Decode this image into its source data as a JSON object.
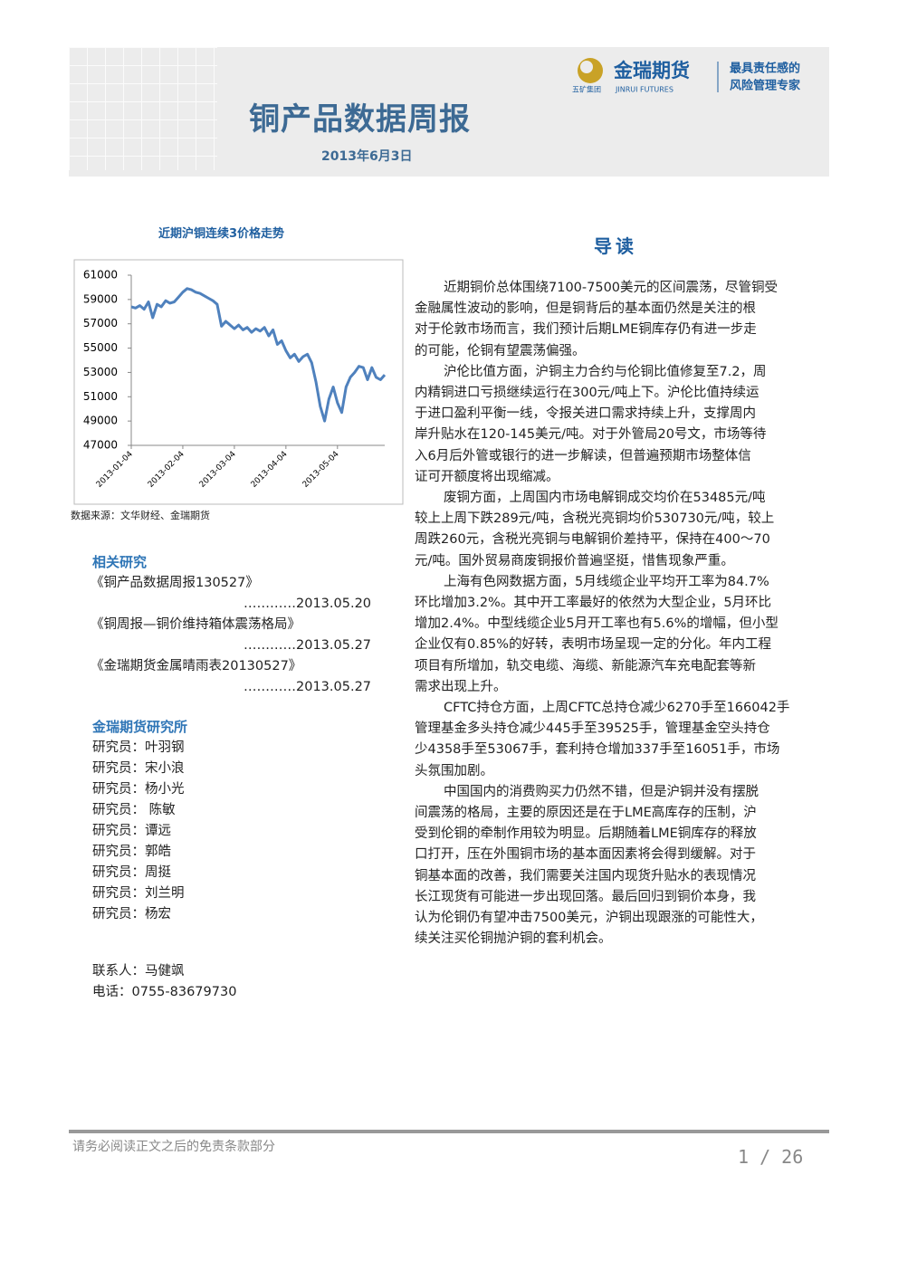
{
  "header": {
    "title": "铜产品数据周报",
    "date": "2013年6月3日",
    "logo_name": "金瑞期货",
    "logo_group": "五矿集团",
    "logo_en": "JINRUI FUTURES",
    "slogan": [
      "最具责任感的",
      "风险管理专家"
    ]
  },
  "chart_data": {
    "type": "line",
    "title": "近期沪铜连续3价格走势",
    "color": "#4f81bd",
    "categories": [
      "2013-01-04",
      null,
      null,
      null,
      null,
      null,
      null,
      null,
      null,
      null,
      null,
      null,
      "2013-02-04",
      null,
      null,
      null,
      null,
      null,
      null,
      null,
      null,
      null,
      null,
      null,
      "2013-03-04",
      null,
      null,
      null,
      null,
      null,
      null,
      null,
      null,
      null,
      null,
      null,
      "2013-04-04",
      null,
      null,
      null,
      null,
      null,
      null,
      null,
      null,
      null,
      null,
      null,
      "2013-05-04",
      null,
      null,
      null,
      null,
      null,
      null,
      null,
      null,
      null,
      null,
      null
    ],
    "values": [
      58400,
      58300,
      58500,
      58200,
      58800,
      57500,
      58600,
      58400,
      58900,
      58700,
      58800,
      59200,
      59600,
      59900,
      59800,
      59600,
      59500,
      59300,
      59100,
      58900,
      58600,
      56800,
      57200,
      56900,
      56600,
      56900,
      56500,
      56700,
      56300,
      56600,
      56400,
      56700,
      56000,
      56500,
      55300,
      55600,
      54800,
      54200,
      54500,
      53900,
      54300,
      54500,
      53800,
      52200,
      50200,
      49000,
      50800,
      51800,
      50500,
      49700,
      51800,
      52600,
      53000,
      53500,
      53400,
      52400,
      53400,
      52600,
      52400,
      52800
    ],
    "ylim": [
      47000,
      61000
    ],
    "yticks": [
      47000,
      49000,
      51000,
      53000,
      55000,
      57000,
      59000,
      61000
    ],
    "grid": false
  },
  "source": "数据来源：文华财经、金瑞期货",
  "related": {
    "title": "相关研究",
    "items": [
      {
        "title": "《铜产品数据周报130527》",
        "date": "…………2013.05.20"
      },
      {
        "title": "《铜周报—铜价维持箱体震荡格局》",
        "date": "…………2013.05.27"
      },
      {
        "title": "《金瑞期货金属晴雨表20130527》",
        "date": "…………2013.05.27"
      }
    ]
  },
  "institute": {
    "title": "金瑞期货研究所",
    "members": [
      "研究员：叶羽钢",
      "研究员：宋小浪",
      "研究员：杨小光",
      "研究员： 陈敏",
      "研究员：谭远",
      "研究员：郭皓",
      "研究员：周挺",
      "研究员：刘兰明",
      "研究员：杨宏"
    ]
  },
  "contact": {
    "person": "联系人：马健飒",
    "phone": "电话：0755-83679730"
  },
  "intro": {
    "title": "导读",
    "paragraphs": [
      [
        "近期铜价总体围绕7100-7500美元的区间震荡，尽管铜受",
        "金融属性波动的影响，但是铜背后的基本面仍然是关注的根",
        "对于伦敦市场而言，我们预计后期LME铜库存仍有进一步走",
        "的可能，伦铜有望震荡偏强。"
      ],
      [
        "沪伦比值方面，沪铜主力合约与伦铜比值修复至7.2，周",
        "内精铜进口亏损继续运行在300元/吨上下。沪伦比值持续运",
        "于进口盈利平衡一线，令报关进口需求持续上升，支撑周内",
        "岸升贴水在120-145美元/吨。对于外管局20号文，市场等待",
        "入6月后外管或银行的进一步解读，但普遍预期市场整体信",
        "证可开额度将出现缩减。"
      ],
      [
        "废铜方面，上周国内市场电解铜成交均价在53485元/吨",
        "较上上周下跌289元/吨，含税光亮铜均价530730元/吨，较上",
        "周跌260元，含税光亮铜与电解铜价差持平，保持在400～70",
        "元/吨。国外贸易商废铜报价普遍坚挺，惜售现象严重。"
      ],
      [
        "上海有色网数据方面，5月线缆企业平均开工率为84.7%",
        "环比增加3.2%。其中开工率最好的依然为大型企业，5月环比",
        "增加2.4%。中型线缆企业5月开工率也有5.6%的增幅，但小型",
        "企业仅有0.85%的好转，表明市场呈现一定的分化。年内工程",
        "项目有所增加，轨交电缆、海缆、新能源汽车充电配套等新",
        "需求出现上升。"
      ],
      [
        "CFTC持仓方面，上周CFTC总持仓减少6270手至166042手",
        "管理基金多头持仓减少445手至39525手，管理基金空头持仓",
        "少4358手至53067手，套利持仓增加337手至16051手，市场",
        "头氛围加剧。"
      ],
      [
        "中国国内的消费购买力仍然不错，但是沪铜并没有摆脱",
        "间震荡的格局，主要的原因还是在于LME高库存的压制，沪",
        "受到伦铜的牵制作用较为明显。后期随着LME铜库存的释放",
        "口打开，压在外围铜市场的基本面因素将会得到缓解。对于",
        "铜基本面的改善，我们需要关注国内现货升贴水的表现情况",
        "长江现货有可能进一步出现回落。最后回归到铜价本身，我",
        "认为伦铜仍有望冲击7500美元，沪铜出现跟涨的可能性大，",
        "续关注买伦铜抛沪铜的套利机会。"
      ]
    ]
  },
  "footer": {
    "disclaimer": "请务必阅读正文之后的免责条款部分",
    "page": "1 / 26"
  }
}
